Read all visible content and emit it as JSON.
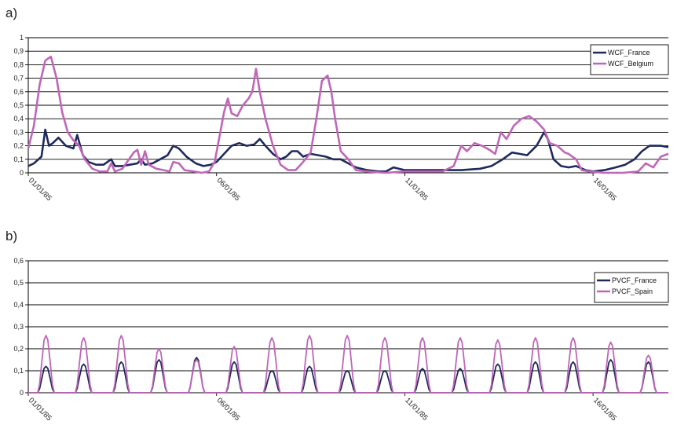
{
  "chart_data": [
    {
      "panel_label": "a)",
      "type": "line",
      "ylim": [
        0,
        1
      ],
      "yticks": [
        "0",
        "0,1",
        "0,2",
        "0,3",
        "0,4",
        "0,5",
        "0,6",
        "0,7",
        "0,8",
        "0,9",
        "1"
      ],
      "xticks": [
        "01/01/85",
        "06/01/85",
        "11/01/85",
        "16/01/85"
      ],
      "xtick_pos": [
        0,
        5,
        10,
        15
      ],
      "xlim": [
        0,
        17
      ],
      "grid": true,
      "legend_position": "top-right",
      "series": [
        {
          "name": "WCF_France",
          "color": "#1f2a5c",
          "points": [
            [
              0,
              0.05
            ],
            [
              0.15,
              0.07
            ],
            [
              0.35,
              0.12
            ],
            [
              0.45,
              0.32
            ],
            [
              0.55,
              0.2
            ],
            [
              0.65,
              0.22
            ],
            [
              0.8,
              0.26
            ],
            [
              1.0,
              0.2
            ],
            [
              1.2,
              0.18
            ],
            [
              1.3,
              0.28
            ],
            [
              1.45,
              0.13
            ],
            [
              1.6,
              0.08
            ],
            [
              1.8,
              0.06
            ],
            [
              2.0,
              0.06
            ],
            [
              2.2,
              0.1
            ],
            [
              2.3,
              0.05
            ],
            [
              2.5,
              0.05
            ],
            [
              2.7,
              0.06
            ],
            [
              2.9,
              0.07
            ],
            [
              3.0,
              0.1
            ],
            [
              3.1,
              0.06
            ],
            [
              3.3,
              0.07
            ],
            [
              3.5,
              0.1
            ],
            [
              3.7,
              0.13
            ],
            [
              3.85,
              0.2
            ],
            [
              4.0,
              0.18
            ],
            [
              4.2,
              0.12
            ],
            [
              4.45,
              0.07
            ],
            [
              4.65,
              0.05
            ],
            [
              4.85,
              0.06
            ],
            [
              5.0,
              0.08
            ],
            [
              5.2,
              0.14
            ],
            [
              5.4,
              0.2
            ],
            [
              5.6,
              0.22
            ],
            [
              5.8,
              0.2
            ],
            [
              6.0,
              0.21
            ],
            [
              6.15,
              0.25
            ],
            [
              6.3,
              0.2
            ],
            [
              6.5,
              0.14
            ],
            [
              6.7,
              0.1
            ],
            [
              6.85,
              0.12
            ],
            [
              7.0,
              0.16
            ],
            [
              7.15,
              0.16
            ],
            [
              7.3,
              0.12
            ],
            [
              7.5,
              0.14
            ],
            [
              7.7,
              0.13
            ],
            [
              7.9,
              0.12
            ],
            [
              8.1,
              0.1
            ],
            [
              8.3,
              0.1
            ],
            [
              8.5,
              0.07
            ],
            [
              8.7,
              0.04
            ],
            [
              9.0,
              0.02
            ],
            [
              9.3,
              0.01
            ],
            [
              9.5,
              0.01
            ],
            [
              9.7,
              0.04
            ],
            [
              10.0,
              0.02
            ],
            [
              10.5,
              0.02
            ],
            [
              11.0,
              0.02
            ],
            [
              11.5,
              0.02
            ],
            [
              12.0,
              0.03
            ],
            [
              12.3,
              0.05
            ],
            [
              12.6,
              0.1
            ],
            [
              12.85,
              0.15
            ],
            [
              13.05,
              0.14
            ],
            [
              13.25,
              0.13
            ],
            [
              13.5,
              0.2
            ],
            [
              13.7,
              0.3
            ],
            [
              13.8,
              0.25
            ],
            [
              13.95,
              0.1
            ],
            [
              14.15,
              0.05
            ],
            [
              14.35,
              0.04
            ],
            [
              14.55,
              0.05
            ],
            [
              14.8,
              0.02
            ],
            [
              15.0,
              0.01
            ],
            [
              15.3,
              0.02
            ],
            [
              15.6,
              0.04
            ],
            [
              15.85,
              0.06
            ],
            [
              16.1,
              0.1
            ],
            [
              16.3,
              0.16
            ],
            [
              16.5,
              0.2
            ],
            [
              16.8,
              0.2
            ],
            [
              17.0,
              0.19
            ]
          ]
        },
        {
          "name": "WCF_Belgium",
          "color": "#c066b8",
          "points": [
            [
              0,
              0.18
            ],
            [
              0.15,
              0.35
            ],
            [
              0.3,
              0.65
            ],
            [
              0.45,
              0.83
            ],
            [
              0.6,
              0.86
            ],
            [
              0.75,
              0.7
            ],
            [
              0.9,
              0.45
            ],
            [
              1.05,
              0.3
            ],
            [
              1.2,
              0.24
            ],
            [
              1.35,
              0.2
            ],
            [
              1.5,
              0.1
            ],
            [
              1.7,
              0.03
            ],
            [
              1.9,
              0.01
            ],
            [
              2.1,
              0.01
            ],
            [
              2.2,
              0.07
            ],
            [
              2.3,
              0.01
            ],
            [
              2.5,
              0.03
            ],
            [
              2.65,
              0.09
            ],
            [
              2.8,
              0.15
            ],
            [
              2.9,
              0.17
            ],
            [
              3.0,
              0.06
            ],
            [
              3.1,
              0.16
            ],
            [
              3.2,
              0.06
            ],
            [
              3.4,
              0.03
            ],
            [
              3.6,
              0.02
            ],
            [
              3.75,
              0.01
            ],
            [
              3.85,
              0.08
            ],
            [
              4.0,
              0.07
            ],
            [
              4.15,
              0.02
            ],
            [
              4.4,
              0.01
            ],
            [
              4.6,
              0.0
            ],
            [
              4.8,
              0.01
            ],
            [
              4.95,
              0.08
            ],
            [
              5.1,
              0.3
            ],
            [
              5.2,
              0.45
            ],
            [
              5.3,
              0.55
            ],
            [
              5.4,
              0.44
            ],
            [
              5.55,
              0.42
            ],
            [
              5.7,
              0.5
            ],
            [
              5.85,
              0.55
            ],
            [
              5.95,
              0.6
            ],
            [
              6.05,
              0.77
            ],
            [
              6.15,
              0.6
            ],
            [
              6.3,
              0.4
            ],
            [
              6.5,
              0.2
            ],
            [
              6.7,
              0.06
            ],
            [
              6.9,
              0.02
            ],
            [
              7.1,
              0.02
            ],
            [
              7.3,
              0.08
            ],
            [
              7.5,
              0.15
            ],
            [
              7.65,
              0.4
            ],
            [
              7.8,
              0.68
            ],
            [
              7.95,
              0.72
            ],
            [
              8.05,
              0.6
            ],
            [
              8.15,
              0.4
            ],
            [
              8.3,
              0.16
            ],
            [
              8.5,
              0.1
            ],
            [
              8.7,
              0.02
            ],
            [
              9.0,
              0.01
            ],
            [
              9.5,
              0.0
            ],
            [
              10.0,
              0.01
            ],
            [
              10.5,
              0.01
            ],
            [
              11.0,
              0.01
            ],
            [
              11.3,
              0.05
            ],
            [
              11.5,
              0.2
            ],
            [
              11.65,
              0.16
            ],
            [
              11.85,
              0.22
            ],
            [
              12.05,
              0.2
            ],
            [
              12.25,
              0.17
            ],
            [
              12.4,
              0.14
            ],
            [
              12.55,
              0.3
            ],
            [
              12.7,
              0.25
            ],
            [
              12.9,
              0.35
            ],
            [
              13.1,
              0.4
            ],
            [
              13.3,
              0.42
            ],
            [
              13.5,
              0.38
            ],
            [
              13.7,
              0.32
            ],
            [
              13.85,
              0.22
            ],
            [
              14.05,
              0.2
            ],
            [
              14.25,
              0.15
            ],
            [
              14.35,
              0.14
            ],
            [
              14.55,
              0.1
            ],
            [
              14.7,
              0.02
            ],
            [
              14.9,
              0.01
            ],
            [
              15.3,
              0.0
            ],
            [
              15.8,
              0.0
            ],
            [
              16.2,
              0.01
            ],
            [
              16.4,
              0.07
            ],
            [
              16.6,
              0.04
            ],
            [
              16.8,
              0.12
            ],
            [
              17.0,
              0.14
            ]
          ]
        }
      ]
    },
    {
      "panel_label": "b)",
      "type": "line",
      "ylim": [
        0,
        0.6
      ],
      "yticks": [
        "0",
        "0,1",
        "0,2",
        "0,3",
        "0,4",
        "0,5",
        "0,6"
      ],
      "xticks": [
        "01/01/85",
        "06/01/85",
        "11/01/85",
        "16/01/85"
      ],
      "xtick_pos": [
        0,
        5,
        10,
        15
      ],
      "xlim": [
        0,
        17
      ],
      "grid": true,
      "legend_position": "top-right",
      "daily_pattern": {
        "description": "daily solar profile, one peak per day",
        "series": [
          {
            "name": "PVCF_France",
            "color": "#1f2a5c",
            "daily_peaks": [
              0.12,
              0.13,
              0.14,
              0.15,
              0.16,
              0.14,
              0.1,
              0.12,
              0.1,
              0.1,
              0.11,
              0.11,
              0.13,
              0.14,
              0.14,
              0.15,
              0.14
            ]
          },
          {
            "name": "PVCF_Spain",
            "color": "#c066b8",
            "daily_peaks": [
              0.26,
              0.25,
              0.26,
              0.2,
              0.15,
              0.21,
              0.25,
              0.26,
              0.26,
              0.25,
              0.25,
              0.25,
              0.24,
              0.25,
              0.25,
              0.23,
              0.17
            ]
          }
        ]
      }
    }
  ]
}
